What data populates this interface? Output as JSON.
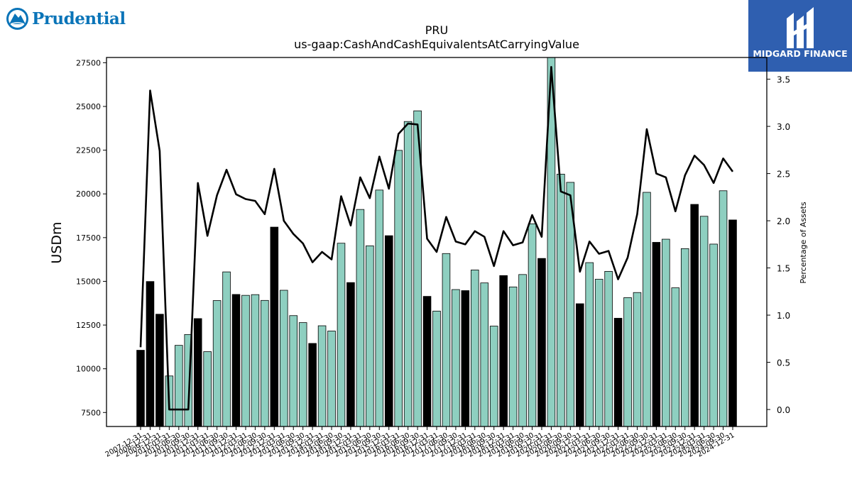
{
  "logos": {
    "left_text": "Prudential",
    "right_text": "MIDGARD FINANCE",
    "right_bg": "#2f5fb0",
    "left_color": "#0a74b8"
  },
  "chart_data": {
    "type": "bar",
    "title": "PRU",
    "subtitle": "us-gaap:CashAndCashEquivalentsAtCarryingValue",
    "ylabel": "USDm",
    "y2label": "Percentage of Assets",
    "ylim": [
      6700,
      27800
    ],
    "y2lim": [
      -0.18,
      3.73
    ],
    "yticks": [
      7500,
      10000,
      12500,
      15000,
      17500,
      20000,
      22500,
      25000,
      27500
    ],
    "y2ticks": [
      0.0,
      0.5,
      1.0,
      1.5,
      2.0,
      2.5,
      3.0,
      3.5
    ],
    "colors": {
      "annual": "#000000",
      "quarterly": "#8ecfc0",
      "line": "#000000"
    },
    "categories": [
      "2007-12-31",
      "2008-12-31",
      "2009-12-31",
      "2010-03-31",
      "2010-06-30",
      "2010-09-30",
      "2010-12-31",
      "2011-03-31",
      "2011-06-30",
      "2011-09-30",
      "2011-12-31",
      "2012-03-31",
      "2012-06-30",
      "2012-09-30",
      "2012-12-31",
      "2013-03-31",
      "2013-06-30",
      "2013-09-30",
      "2013-12-31",
      "2014-03-31",
      "2014-06-30",
      "2014-09-30",
      "2014-12-31",
      "2015-03-31",
      "2015-06-30",
      "2015-09-30",
      "2015-12-31",
      "2016-03-31",
      "2016-06-30",
      "2016-09-30",
      "2016-12-31",
      "2017-03-31",
      "2017-06-30",
      "2017-09-30",
      "2017-12-31",
      "2018-03-31",
      "2018-06-30",
      "2018-09-30",
      "2018-12-31",
      "2019-03-31",
      "2019-06-30",
      "2019-09-30",
      "2019-12-31",
      "2020-03-31",
      "2020-06-30",
      "2020-09-30",
      "2020-12-31",
      "2021-03-31",
      "2021-06-30",
      "2021-09-30",
      "2021-12-31",
      "2022-03-31",
      "2022-06-30",
      "2022-09-30",
      "2022-12-31",
      "2023-03-31",
      "2023-06-30",
      "2023-09-30",
      "2023-12-31",
      "2024-03-31",
      "2024-06-30",
      "2024-09-30",
      "2024-12-31"
    ],
    "annual_flags": [
      1,
      1,
      1,
      0,
      0,
      0,
      1,
      0,
      0,
      0,
      1,
      0,
      0,
      0,
      1,
      0,
      0,
      0,
      1,
      0,
      0,
      0,
      1,
      0,
      0,
      0,
      1,
      0,
      0,
      0,
      1,
      0,
      0,
      0,
      1,
      0,
      0,
      0,
      1,
      0,
      0,
      0,
      1,
      0,
      0,
      0,
      1,
      0,
      0,
      0,
      1,
      0,
      0,
      0,
      1,
      0,
      0,
      0,
      1,
      0,
      0,
      0,
      1
    ],
    "values": [
      11060,
      14990,
      13120,
      9590,
      11340,
      11960,
      12870,
      10980,
      13900,
      15540,
      14250,
      14200,
      14240,
      13910,
      18100,
      14490,
      13040,
      12640,
      11450,
      12460,
      12160,
      17180,
      14930,
      19110,
      17030,
      20220,
      17610,
      22490,
      24140,
      24750,
      14140,
      13300,
      16590,
      14530,
      14470,
      15650,
      14910,
      12440,
      15330,
      14680,
      15390,
      18290,
      16310,
      27800,
      21130,
      20660,
      13720,
      16070,
      15120,
      15570,
      12890,
      14070,
      14360,
      20090,
      17230,
      17410,
      14630,
      16870,
      19400,
      18720,
      17130,
      20180,
      18510
    ],
    "pct_assets": [
      0.66,
      3.38,
      2.74,
      0.0,
      0.0,
      0.0,
      2.4,
      1.84,
      2.27,
      2.54,
      2.28,
      2.23,
      2.21,
      2.07,
      2.55,
      2.0,
      1.86,
      1.76,
      1.56,
      1.67,
      1.59,
      2.26,
      1.95,
      2.46,
      2.24,
      2.68,
      2.34,
      2.92,
      3.03,
      3.02,
      1.81,
      1.67,
      2.04,
      1.78,
      1.75,
      1.89,
      1.83,
      1.52,
      1.89,
      1.74,
      1.77,
      2.06,
      1.83,
      3.63,
      2.31,
      2.27,
      1.46,
      1.78,
      1.65,
      1.68,
      1.38,
      1.61,
      2.07,
      2.97,
      2.5,
      2.46,
      2.1,
      2.48,
      2.69,
      2.59,
      2.4,
      2.66,
      2.52
    ]
  }
}
